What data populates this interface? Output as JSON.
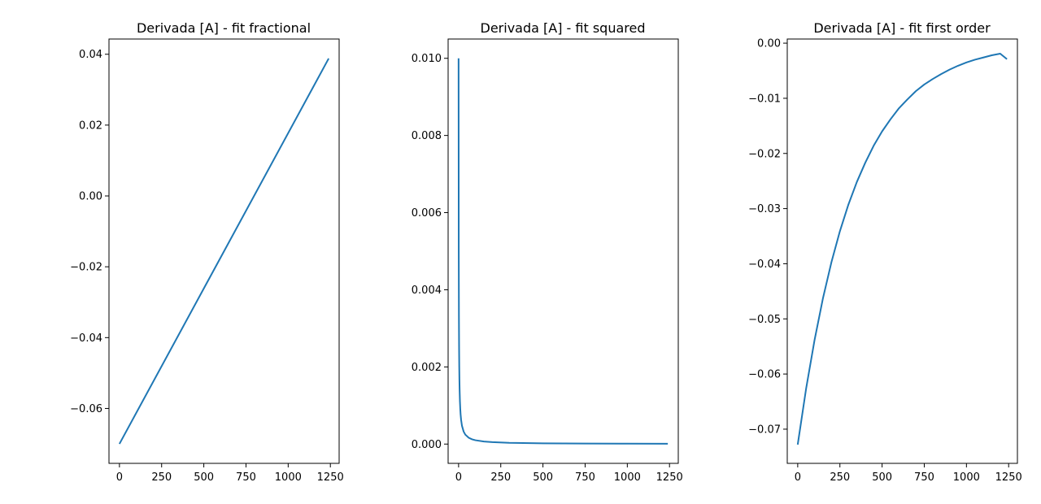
{
  "chart_data": [
    {
      "type": "line",
      "title": "Derivada [A] - fit fractional",
      "xlabel": "",
      "ylabel": "",
      "xlim": [
        -62,
        1302
      ],
      "ylim": [
        -0.0755,
        0.0443
      ],
      "xticks": [
        0,
        250,
        500,
        750,
        1000,
        1250
      ],
      "xtick_labels": [
        "0",
        "250",
        "500",
        "750",
        "1000",
        "1250"
      ],
      "yticks": [
        -0.06,
        -0.04,
        -0.02,
        0.0,
        0.02,
        0.04
      ],
      "ytick_labels": [
        "−0.06",
        "−0.04",
        "−0.02",
        "0.00",
        "0.02",
        "0.04"
      ],
      "grid": false,
      "series": [
        {
          "color": "#1f77b4",
          "x": [
            0,
            1240
          ],
          "y": [
            -0.07,
            0.0388
          ]
        }
      ]
    },
    {
      "type": "line",
      "title": "Derivada [A] - fit squared",
      "xlabel": "",
      "ylabel": "",
      "xlim": [
        -62,
        1302
      ],
      "ylim": [
        -0.0005,
        0.0105
      ],
      "xticks": [
        0,
        250,
        500,
        750,
        1000,
        1250
      ],
      "xtick_labels": [
        "0",
        "250",
        "500",
        "750",
        "1000",
        "1250"
      ],
      "yticks": [
        0.0,
        0.002,
        0.004,
        0.006,
        0.008,
        0.01
      ],
      "ytick_labels": [
        "0.000",
        "0.002",
        "0.004",
        "0.006",
        "0.008",
        "0.010"
      ],
      "grid": false,
      "series": [
        {
          "color": "#1f77b4",
          "x": [
            0,
            1,
            2,
            3,
            4,
            5,
            6,
            8,
            10,
            12,
            15,
            20,
            30,
            40,
            60,
            80,
            100,
            150,
            200,
            300,
            500,
            750,
            1000,
            1240
          ],
          "y": [
            0.01,
            0.005,
            0.003333,
            0.0025,
            0.002,
            0.001667,
            0.001429,
            0.001111,
            0.000909,
            0.000769,
            0.000625,
            0.000476,
            0.000323,
            0.000244,
            0.000164,
            0.000123,
            9.9e-05,
            6.6e-05,
            5e-05,
            3.3e-05,
            2e-05,
            1.3e-05,
            1e-05,
            8e-06
          ]
        }
      ]
    },
    {
      "type": "line",
      "title": "Derivada [A] - fit first order",
      "xlabel": "",
      "ylabel": "",
      "xlim": [
        -62,
        1302
      ],
      "ylim": [
        -0.0762,
        0.00075
      ],
      "xticks": [
        0,
        250,
        500,
        750,
        1000,
        1250
      ],
      "xtick_labels": [
        "0",
        "250",
        "500",
        "750",
        "1000",
        "1250"
      ],
      "yticks": [
        -0.07,
        -0.06,
        -0.05,
        -0.04,
        -0.03,
        -0.02,
        -0.01,
        0.0
      ],
      "ytick_labels": [
        "−0.07",
        "−0.06",
        "−0.05",
        "−0.04",
        "−0.03",
        "−0.02",
        "−0.01",
        "0.00"
      ],
      "grid": false,
      "series": [
        {
          "color": "#1f77b4",
          "x": [
            0,
            50,
            100,
            150,
            200,
            250,
            300,
            350,
            400,
            450,
            500,
            550,
            600,
            650,
            700,
            750,
            800,
            850,
            900,
            950,
            1000,
            1050,
            1100,
            1150,
            1200,
            1240
          ],
          "y": [
            -0.0728,
            -0.0626,
            -0.0538,
            -0.0462,
            -0.0397,
            -0.0341,
            -0.0293,
            -0.0252,
            -0.0217,
            -0.0186,
            -0.016,
            -0.0138,
            -0.0118,
            -0.0102,
            -0.0087,
            -0.0075,
            -0.0065,
            -0.0056,
            -0.0048,
            -0.0041,
            -0.0035,
            -0.003,
            -0.0026,
            -0.0022,
            -0.0019,
            -0.0029
          ]
        }
      ]
    }
  ]
}
